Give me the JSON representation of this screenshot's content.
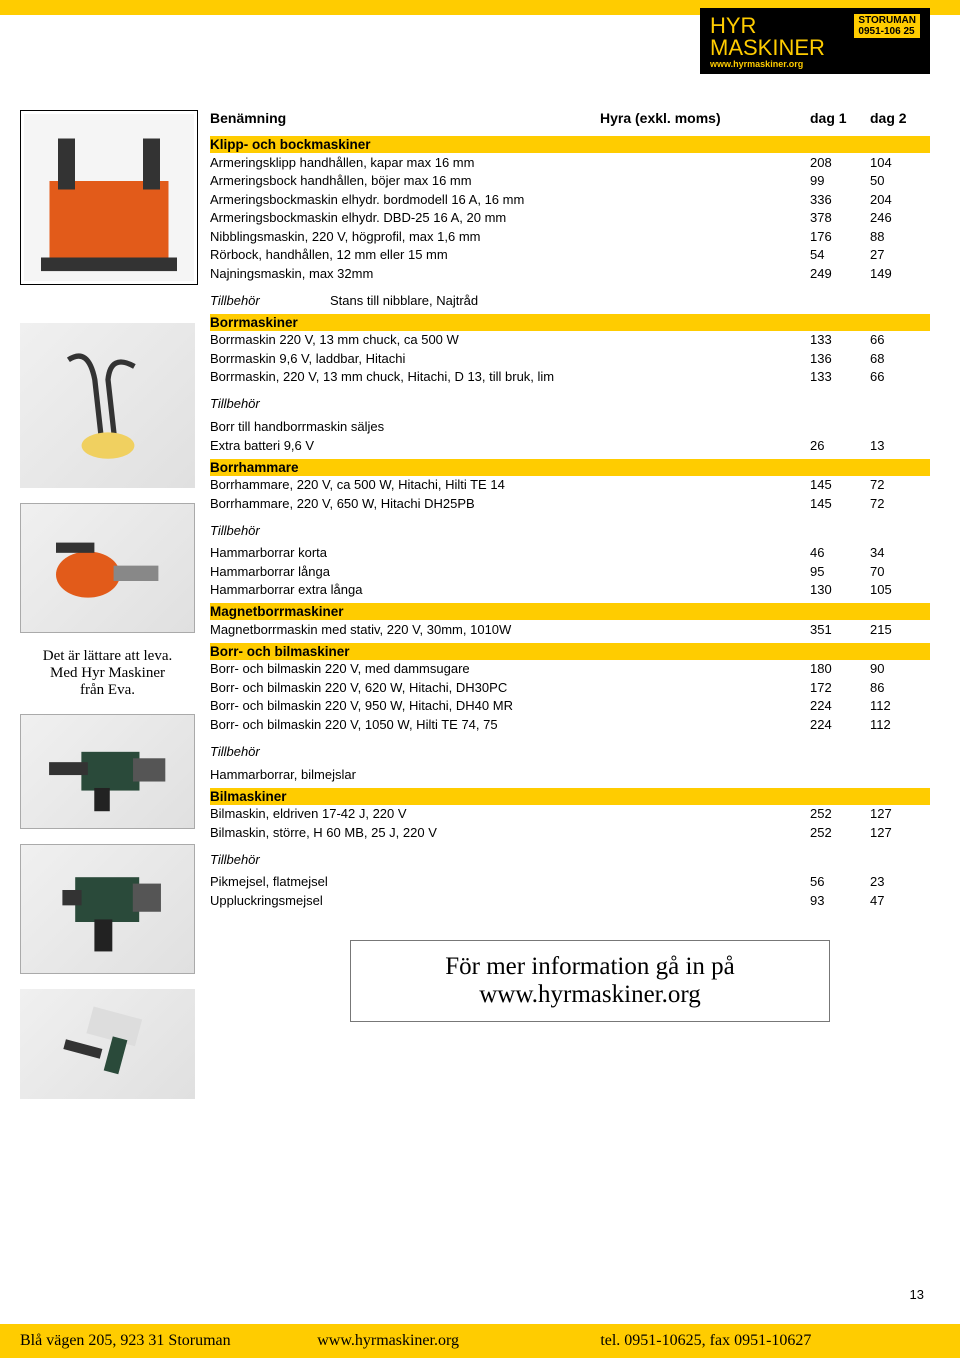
{
  "logo": {
    "line1": "HYR",
    "storuman_l1": "STORUMAN",
    "storuman_l2": "0951-106 25",
    "line2": "MASKINER",
    "url": "www.hyrmaskiner.org"
  },
  "header": {
    "col_name": "Benämning",
    "col_price": "Hyra (exkl. moms)",
    "col_d1": "dag 1",
    "col_d2": "dag 2"
  },
  "tagline": {
    "l1": "Det är lättare att leva.",
    "l2": "Med Hyr Maskiner",
    "l3": "från Eva."
  },
  "sections": [
    {
      "title": "Klipp- och bockmaskiner",
      "rows": [
        {
          "name": "Armeringsklipp handhållen, kapar max 16 mm",
          "d1": "208",
          "d2": "104"
        },
        {
          "name": "Armeringsbock handhållen, böjer max 16 mm",
          "d1": "99",
          "d2": "50"
        },
        {
          "name": "Armeringsbockmaskin elhydr. bordmodell 16 A, 16 mm",
          "d1": "336",
          "d2": "204"
        },
        {
          "name": "Armeringsbockmaskin elhydr. DBD-25 16 A, 20 mm",
          "d1": "378",
          "d2": "246"
        },
        {
          "name": "Nibblingsmaskin, 220 V, högprofil, max 1,6 mm",
          "d1": "176",
          "d2": "88"
        },
        {
          "name": "Rörbock, handhållen, 12 mm eller 15 mm",
          "d1": "54",
          "d2": "27"
        },
        {
          "name": "Najningsmaskin, max 32mm",
          "d1": "249",
          "d2": "149"
        }
      ],
      "tillbehor_inline": {
        "label": "Tillbehör",
        "text": "Stans till nibblare, Najtråd"
      }
    },
    {
      "title": "Borrmaskiner",
      "rows": [
        {
          "name": "Borrmaskin 220 V, 13 mm chuck, ca 500 W",
          "d1": "133",
          "d2": "66"
        },
        {
          "name": "Borrmaskin 9,6 V, laddbar, Hitachi",
          "d1": "136",
          "d2": "68"
        },
        {
          "name": "Borrmaskin, 220 V, 13 mm chuck, Hitachi, D 13, till bruk, lim",
          "d1": "133",
          "d2": "66"
        }
      ],
      "tillbehor": {
        "label": "Tillbehör",
        "rows": [
          {
            "name": "Borr till handborrmaskin säljes",
            "d1": "",
            "d2": ""
          },
          {
            "name": "Extra batteri 9,6 V",
            "d1": "26",
            "d2": "13"
          }
        ]
      }
    },
    {
      "title": "Borrhammare",
      "rows": [
        {
          "name": "Borrhammare, 220 V, ca 500 W, Hitachi, Hilti TE 14",
          "d1": "145",
          "d2": "72"
        },
        {
          "name": "Borrhammare, 220 V, 650 W, Hitachi DH25PB",
          "d1": "145",
          "d2": "72"
        }
      ],
      "tillbehor": {
        "label": "Tillbehör",
        "rows": [
          {
            "name": "Hammarborrar korta",
            "d1": "46",
            "d2": "34"
          },
          {
            "name": "Hammarborrar långa",
            "d1": "95",
            "d2": "70"
          },
          {
            "name": "Hammarborrar extra långa",
            "d1": "130",
            "d2": "105"
          }
        ]
      }
    },
    {
      "title": "Magnetborrmaskiner",
      "rows": [
        {
          "name": "Magnetborrmaskin med stativ, 220 V, 30mm, 1010W",
          "d1": "351",
          "d2": "215"
        }
      ]
    },
    {
      "title": "Borr- och bilmaskiner",
      "rows": [
        {
          "name": "Borr- och bilmaskin 220 V, med dammsugare",
          "d1": "180",
          "d2": "90"
        },
        {
          "name": "Borr- och bilmaskin 220 V, 620 W, Hitachi, DH30PC",
          "d1": "172",
          "d2": "86"
        },
        {
          "name": "Borr- och bilmaskin 220 V, 950 W, Hitachi, DH40 MR",
          "d1": "224",
          "d2": "112"
        },
        {
          "name": "Borr- och bilmaskin 220 V, 1050 W, Hilti TE 74, 75",
          "d1": "224",
          "d2": "112"
        }
      ],
      "tillbehor": {
        "label": "Tillbehör",
        "rows": [
          {
            "name": "Hammarborrar, bilmejslar",
            "d1": "",
            "d2": ""
          }
        ]
      }
    },
    {
      "title": "Bilmaskiner",
      "rows": [
        {
          "name": "Bilmaskin, eldriven 17-42 J, 220 V",
          "d1": "252",
          "d2": "127"
        },
        {
          "name": "Bilmaskin, större, H 60 MB, 25 J, 220 V",
          "d1": "252",
          "d2": "127"
        }
      ],
      "tillbehor": {
        "label": "Tillbehör",
        "rows": [
          {
            "name": "Pikmejsel, flatmejsel",
            "d1": "56",
            "d2": "23"
          },
          {
            "name": "Uppluckringsmejsel",
            "d1": "93",
            "d2": "47"
          }
        ]
      }
    }
  ],
  "info_box": {
    "l1": "För mer information gå in på",
    "l2": "www.hyrmaskiner.org"
  },
  "page_number": "13",
  "footer": {
    "address": "Blå vägen 205,  923 31 Storuman",
    "url": "www.hyrmaskiner.org",
    "phone": "tel. 0951-10625, fax 0951-10627"
  },
  "colors": {
    "accent": "#ffcc00",
    "black": "#000000"
  }
}
